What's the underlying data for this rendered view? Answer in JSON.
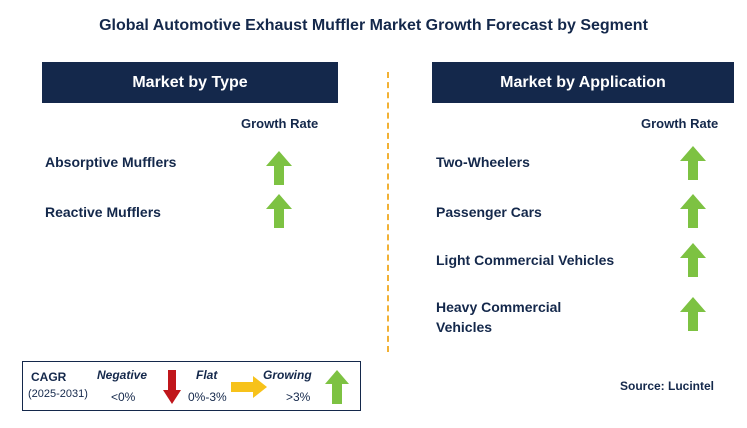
{
  "title": "Global Automotive Exhaust Muffler Market Growth Forecast by Segment",
  "left_panel": {
    "header": "Market by Type",
    "growth_rate_label": "Growth Rate",
    "segments": [
      {
        "label": "Absorptive Mufflers",
        "trend": "growing"
      },
      {
        "label": "Reactive Mufflers",
        "trend": "growing"
      }
    ]
  },
  "right_panel": {
    "header": "Market by Application",
    "growth_rate_label": "Growth Rate",
    "segments": [
      {
        "label": "Two-Wheelers",
        "trend": "growing"
      },
      {
        "label": "Passenger Cars",
        "trend": "growing"
      },
      {
        "label": "Light Commercial Vehicles",
        "trend": "growing"
      },
      {
        "label": "Heavy Commercial",
        "label_line2": "Vehicles",
        "trend": "growing"
      }
    ]
  },
  "legend": {
    "cagr_label": "CAGR",
    "period": "(2025-2031)",
    "negative_label": "Negative",
    "negative_range": "<0%",
    "flat_label": "Flat",
    "flat_range": "0%-3%",
    "growing_label": "Growing",
    "growing_range": ">3%"
  },
  "source": "Source: Lucintel",
  "colors": {
    "navy": "#14284b",
    "growing_green": "#7dc242",
    "negative_red": "#c0161b",
    "flat_yellow": "#f7c21a",
    "divider_orange": "#f2b134"
  }
}
